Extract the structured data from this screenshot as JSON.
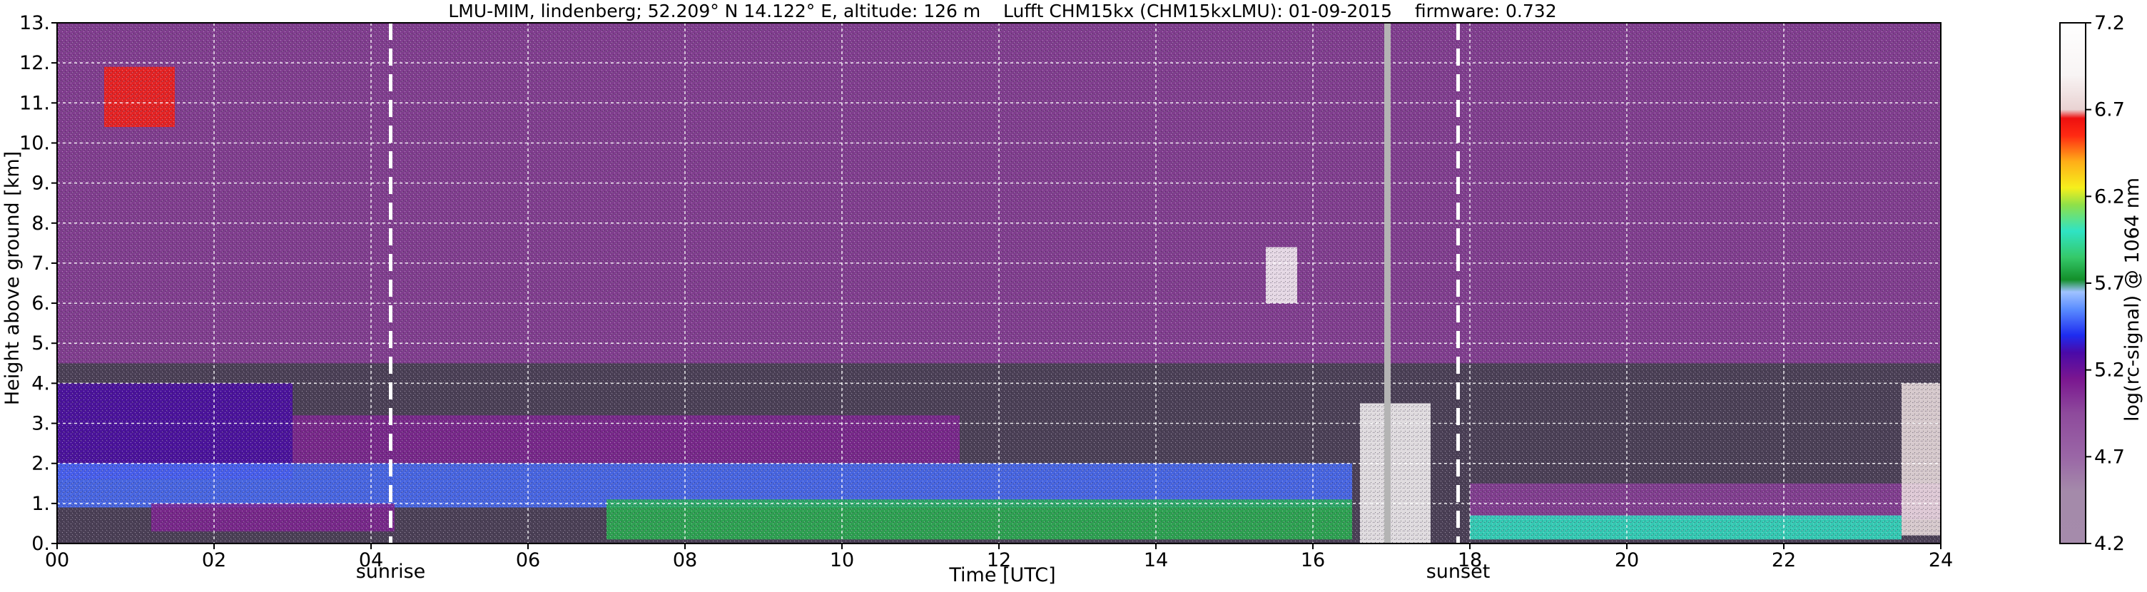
{
  "chart_data": {
    "type": "heatmap",
    "title": "LMU-MIM, lindenberg; 52.209° N 14.122° E, altitude: 126 m    Lufft CHM15kx (CHM15kxLMU): 01-09-2015    firmware: 0.732",
    "xlabel": "Time [UTC]",
    "ylabel": "Height above ground [km]",
    "xlim": [
      0,
      24
    ],
    "ylim": [
      0,
      13
    ],
    "x_ticks": [
      0,
      2,
      4,
      6,
      8,
      10,
      12,
      14,
      16,
      18,
      20,
      22,
      24
    ],
    "x_tick_labels": [
      "00",
      "02",
      "04",
      "06",
      "08",
      "10",
      "12",
      "14",
      "16",
      "18",
      "20",
      "22",
      "24"
    ],
    "y_ticks": [
      0,
      1,
      2,
      3,
      4,
      5,
      6,
      7,
      8,
      9,
      10,
      11,
      12,
      13
    ],
    "y_tick_labels": [
      "0.",
      "1.",
      "2.",
      "3.",
      "4.",
      "5.",
      "6.",
      "7.",
      "8.",
      "9.",
      "10.",
      "11.",
      "12.",
      "13."
    ],
    "grid": true,
    "annotations": [
      {
        "label": "sunrise",
        "x": 4.25
      },
      {
        "label": "sunset",
        "x": 17.85
      }
    ],
    "data_gap_x": 16.95,
    "colorbar": {
      "label": "log(rc-signal) @ 1064 nm",
      "range": [
        4.2,
        7.2
      ],
      "ticks": [
        4.2,
        4.7,
        5.2,
        5.7,
        6.2,
        6.7,
        7.2
      ],
      "tick_labels": [
        "4.2",
        "4.7",
        "5.2",
        "5.7",
        "6.2",
        "6.7",
        "7.2"
      ],
      "stops": [
        [
          4.2,
          "#a58bab"
        ],
        [
          4.5,
          "#a48aaa"
        ],
        [
          4.7,
          "#9a66a6"
        ],
        [
          4.95,
          "#8e4a9c"
        ],
        [
          5.15,
          "#7a1690"
        ],
        [
          5.3,
          "#4a0aa8"
        ],
        [
          5.4,
          "#1e2cf0"
        ],
        [
          5.55,
          "#5a8cff"
        ],
        [
          5.65,
          "#9fc2ff"
        ],
        [
          5.72,
          "#138f2a"
        ],
        [
          5.85,
          "#35c96a"
        ],
        [
          6.0,
          "#2fe3c4"
        ],
        [
          6.15,
          "#8ee04a"
        ],
        [
          6.25,
          "#f6ef1c"
        ],
        [
          6.4,
          "#ffae18"
        ],
        [
          6.55,
          "#ff2a12"
        ],
        [
          6.65,
          "#ee1010"
        ],
        [
          6.7,
          "#e9d2d2"
        ],
        [
          6.9,
          "#f8f4f4"
        ],
        [
          7.2,
          "#ffffff"
        ]
      ]
    },
    "layers": [
      {
        "name": "",
        "x": [
          0,
          24
        ],
        "y": [
          4.5,
          13
        ],
        "value": 5.0
      },
      {
        "name": "",
        "x": [
          0,
          3.0
        ],
        "y": [
          1.6,
          4.0
        ],
        "value": 5.3
      },
      {
        "name": "",
        "x": [
          3.0,
          11.5
        ],
        "y": [
          2.0,
          3.2
        ],
        "value": 5.1
      },
      {
        "name": "",
        "x": [
          0,
          16.5
        ],
        "y": [
          0.9,
          2.0
        ],
        "value": 5.5
      },
      {
        "name": "",
        "x": [
          1.2,
          4.3
        ],
        "y": [
          0.3,
          1.0
        ],
        "value": 5.1
      },
      {
        "name": "",
        "x": [
          7.0,
          16.5
        ],
        "y": [
          0.1,
          1.1
        ],
        "value": 5.8
      },
      {
        "name": "",
        "x": [
          16.6,
          17.5
        ],
        "y": [
          0.0,
          3.5
        ],
        "value": 7.0
      },
      {
        "name": "",
        "x": [
          18.0,
          24.0
        ],
        "y": [
          0.6,
          1.5
        ],
        "value": 5.0
      },
      {
        "name": "",
        "x": [
          18.0,
          23.5
        ],
        "y": [
          0.1,
          0.7
        ],
        "value": 6.0
      },
      {
        "name": "",
        "x": [
          23.5,
          24.0
        ],
        "y": [
          0.2,
          4.0
        ],
        "value": 6.8
      },
      {
        "name": "",
        "x": [
          0.6,
          1.5
        ],
        "y": [
          10.4,
          11.9
        ],
        "value": 6.6
      },
      {
        "name": "",
        "x": [
          15.4,
          15.8
        ],
        "y": [
          6.0,
          7.4
        ],
        "value": 6.9
      }
    ]
  }
}
